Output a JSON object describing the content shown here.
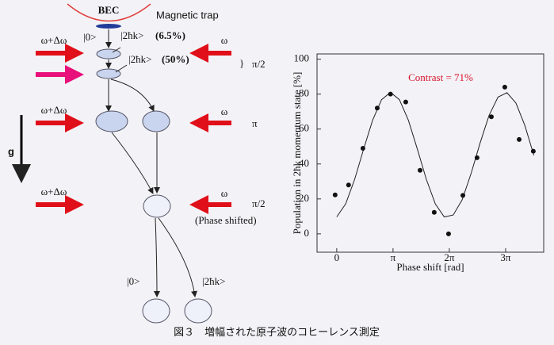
{
  "diagram": {
    "bec": "BEC",
    "trap": "Magnetic trap",
    "state0_top": "|0>",
    "state2_top": "|2ħk>",
    "state2_top_pct": "(6.5%)",
    "state2_mid": "|2ħk>",
    "state2_mid_pct": "(50%)",
    "beam_left": [
      "ω+Δω",
      "ω+Δω",
      "ω+Δω"
    ],
    "beam_right": [
      "ω",
      "ω",
      "ω"
    ],
    "pulse1": "π/2",
    "pulse2": "π",
    "pulse3": "π/2",
    "phase_shifted": "(Phase shifted)",
    "gravity": "g",
    "out0": "|0>",
    "out2": "|2ħk>"
  },
  "chart_data": {
    "type": "scatter",
    "ylabel": "Population in 2ħk momentum state [%]",
    "xlabel": "Phase shift [rad]",
    "annotation": "Contrast = 71%",
    "x": [
      -0.09,
      0.66,
      1.46,
      2.26,
      3.0,
      3.85,
      4.65,
      5.44,
      6.24,
      7.04,
      7.83,
      8.63,
      9.38,
      10.18,
      10.97
    ],
    "values": [
      22.3,
      28,
      49,
      72,
      80,
      75.5,
      36.4,
      12.3,
      0,
      22,
      43.6,
      67,
      84,
      54,
      47.3
    ],
    "color": "#111111",
    "fit": {
      "color": "#222222",
      "x": [
        0,
        0.5,
        1,
        1.5,
        2,
        2.5,
        3,
        3.5,
        4,
        4.5,
        5,
        5.5,
        6,
        6.5,
        7,
        7.5,
        8,
        8.5,
        9,
        9.5,
        10,
        10.5,
        11
      ],
      "values": [
        9.7,
        17.2,
        31.2,
        48.5,
        65.0,
        76.8,
        81,
        76.8,
        65.0,
        48.5,
        31.2,
        17.2,
        9.7,
        10.8,
        19.5,
        34.6,
        52.0,
        67.8,
        78.3,
        80.8,
        74.9,
        62.0,
        45.0
      ]
    },
    "xlim": [
      -1.1,
      11.55
    ],
    "ylim": [
      -10.5,
      103
    ],
    "xticks": [
      0,
      {
        "value": 3.14159,
        "label": "π"
      },
      {
        "value": 6.28319,
        "label": "2π"
      },
      {
        "value": 9.42478,
        "label": "3π"
      }
    ],
    "yticks": [
      0,
      20,
      40,
      60,
      80,
      100
    ]
  },
  "caption": "図３　増幅された原子波のコヒーレンス測定"
}
